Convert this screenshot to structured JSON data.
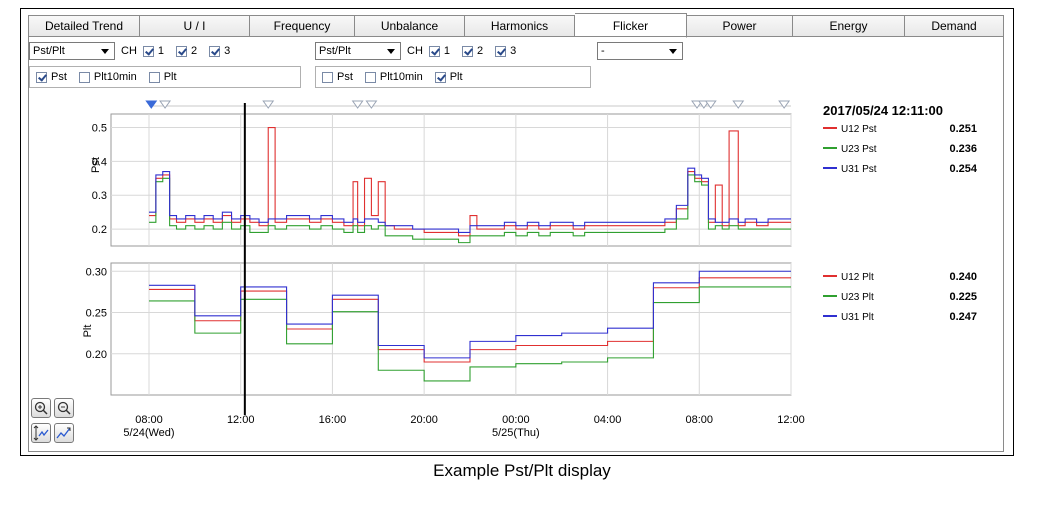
{
  "tabs": [
    {
      "label": "Detailed Trend",
      "width": 112
    },
    {
      "label": "U / I",
      "width": 110
    },
    {
      "label": "Frequency",
      "width": 105
    },
    {
      "label": "Unbalance",
      "width": 110
    },
    {
      "label": "Harmonics",
      "width": 110
    },
    {
      "label": "Flicker",
      "width": 112
    },
    {
      "label": "Power",
      "width": 106
    },
    {
      "label": "Energy",
      "width": 112
    },
    {
      "label": "Demand",
      "width": 99
    }
  ],
  "active_tab": "Flicker",
  "controls": {
    "left": {
      "select": "Pst/Plt",
      "ch_label": "CH",
      "channels": [
        "1",
        "2",
        "3"
      ]
    },
    "right": {
      "select": "Pst/Plt",
      "ch_label": "CH",
      "channels": [
        "1",
        "2",
        "3"
      ]
    },
    "third_select": "-"
  },
  "options": {
    "left": {
      "pst": "Pst",
      "plt10min": "Plt10min",
      "plt": "Plt"
    },
    "right": {
      "pst": "Pst",
      "plt10min": "Plt10min",
      "plt": "Plt"
    }
  },
  "readout": {
    "timestamp": "2017/05/24 12:11:00",
    "pst": [
      {
        "name": "U12 Pst",
        "value": "0.251",
        "color": "#e03030"
      },
      {
        "name": "U23 Pst",
        "value": "0.236",
        "color": "#30a030"
      },
      {
        "name": "U31 Pst",
        "value": "0.254",
        "color": "#3030d0"
      }
    ],
    "plt": [
      {
        "name": "U12 Plt",
        "value": "0.240",
        "color": "#e03030"
      },
      {
        "name": "U23 Plt",
        "value": "0.225",
        "color": "#30a030"
      },
      {
        "name": "U31 Plt",
        "value": "0.247",
        "color": "#3030d0"
      }
    ]
  },
  "x_ticks": [
    {
      "label": "08:00",
      "sub": "5/24(Wed)",
      "hour": 0
    },
    {
      "label": "12:00",
      "sub": "",
      "hour": 4
    },
    {
      "label": "16:00",
      "sub": "",
      "hour": 8
    },
    {
      "label": "20:00",
      "sub": "",
      "hour": 12
    },
    {
      "label": "00:00",
      "sub": "5/25(Thu)",
      "hour": 16
    },
    {
      "label": "04:00",
      "sub": "",
      "hour": 20
    },
    {
      "label": "08:00",
      "sub": "",
      "hour": 24
    },
    {
      "label": "12:00",
      "sub": "",
      "hour": 28
    }
  ],
  "cursor_hour": 4.18,
  "event_marker_hours": [
    0.1,
    0.7,
    5.2,
    9.1,
    9.7,
    23.9,
    24.2,
    24.5,
    25.7,
    27.7
  ],
  "chart_data": [
    {
      "type": "line",
      "ylabel": "Pst",
      "ylim": [
        0.15,
        0.54
      ],
      "yticks": [
        0.2,
        0.3,
        0.4,
        0.5
      ],
      "xlim": [
        0,
        28
      ],
      "series": [
        {
          "name": "U12 Pst",
          "color": "#e03030",
          "x": [
            0,
            0.3,
            0.6,
            0.9,
            1.2,
            1.6,
            2,
            2.4,
            2.8,
            3.2,
            3.6,
            4,
            4.4,
            4.8,
            5.2,
            5.5,
            6,
            6.5,
            7,
            7.5,
            8,
            8.5,
            8.9,
            9.1,
            9.4,
            9.7,
            10,
            10.3,
            10.7,
            11,
            11.5,
            12,
            12.5,
            13,
            13.5,
            14,
            14.3,
            14.6,
            15,
            15.5,
            16,
            16.5,
            17,
            17.5,
            18,
            18.5,
            19,
            19.5,
            20,
            20.5,
            21,
            21.5,
            22,
            22.5,
            23,
            23.5,
            23.8,
            24.1,
            24.4,
            24.7,
            25,
            25.3,
            25.7,
            26,
            26.5,
            27,
            27.5,
            28
          ],
          "y": [
            0.24,
            0.35,
            0.36,
            0.23,
            0.22,
            0.23,
            0.22,
            0.23,
            0.22,
            0.24,
            0.22,
            0.23,
            0.22,
            0.21,
            0.5,
            0.22,
            0.23,
            0.23,
            0.22,
            0.23,
            0.22,
            0.21,
            0.34,
            0.21,
            0.35,
            0.24,
            0.34,
            0.21,
            0.2,
            0.2,
            0.2,
            0.19,
            0.19,
            0.19,
            0.18,
            0.24,
            0.2,
            0.2,
            0.2,
            0.21,
            0.2,
            0.21,
            0.2,
            0.21,
            0.21,
            0.2,
            0.21,
            0.21,
            0.21,
            0.21,
            0.21,
            0.21,
            0.21,
            0.22,
            0.26,
            0.37,
            0.35,
            0.34,
            0.22,
            0.33,
            0.21,
            0.49,
            0.21,
            0.22,
            0.21,
            0.22,
            0.22,
            0.22
          ]
        },
        {
          "name": "U23 Pst",
          "color": "#30a030",
          "x": [
            0,
            0.3,
            0.6,
            0.9,
            1.2,
            1.6,
            2,
            2.4,
            2.8,
            3.2,
            3.6,
            4,
            4.4,
            4.8,
            5.2,
            5.5,
            6,
            6.5,
            7,
            7.5,
            8,
            8.5,
            8.9,
            9.1,
            9.4,
            9.7,
            10,
            10.3,
            10.7,
            11,
            11.5,
            12,
            12.5,
            13,
            13.5,
            14,
            14.3,
            14.6,
            15,
            15.5,
            16,
            16.5,
            17,
            17.5,
            18,
            18.5,
            19,
            19.5,
            20,
            20.5,
            21,
            21.5,
            22,
            22.5,
            23,
            23.5,
            23.8,
            24.1,
            24.4,
            24.7,
            25,
            25.3,
            25.7,
            26,
            26.5,
            27,
            27.5,
            28
          ],
          "y": [
            0.22,
            0.34,
            0.35,
            0.21,
            0.2,
            0.21,
            0.2,
            0.21,
            0.2,
            0.22,
            0.2,
            0.21,
            0.19,
            0.19,
            0.21,
            0.2,
            0.21,
            0.21,
            0.2,
            0.21,
            0.2,
            0.19,
            0.21,
            0.19,
            0.21,
            0.2,
            0.21,
            0.18,
            0.18,
            0.18,
            0.17,
            0.17,
            0.17,
            0.17,
            0.16,
            0.18,
            0.18,
            0.18,
            0.18,
            0.19,
            0.18,
            0.19,
            0.18,
            0.19,
            0.19,
            0.18,
            0.19,
            0.19,
            0.19,
            0.19,
            0.19,
            0.19,
            0.19,
            0.2,
            0.23,
            0.36,
            0.34,
            0.33,
            0.2,
            0.21,
            0.2,
            0.21,
            0.2,
            0.2,
            0.2,
            0.2,
            0.2,
            0.2
          ]
        },
        {
          "name": "U31 Pst",
          "color": "#3030d0",
          "x": [
            0,
            0.3,
            0.6,
            0.9,
            1.2,
            1.6,
            2,
            2.4,
            2.8,
            3.2,
            3.6,
            4,
            4.4,
            4.8,
            5.2,
            5.5,
            6,
            6.5,
            7,
            7.5,
            8,
            8.5,
            8.9,
            9.1,
            9.4,
            9.7,
            10,
            10.3,
            10.7,
            11,
            11.5,
            12,
            12.5,
            13,
            13.5,
            14,
            14.3,
            14.6,
            15,
            15.5,
            16,
            16.5,
            17,
            17.5,
            18,
            18.5,
            19,
            19.5,
            20,
            20.5,
            21,
            21.5,
            22,
            22.5,
            23,
            23.5,
            23.8,
            24.1,
            24.4,
            24.7,
            25,
            25.3,
            25.7,
            26,
            26.5,
            27,
            27.5,
            28
          ],
          "y": [
            0.25,
            0.36,
            0.37,
            0.24,
            0.23,
            0.24,
            0.23,
            0.24,
            0.23,
            0.25,
            0.23,
            0.24,
            0.23,
            0.22,
            0.23,
            0.23,
            0.24,
            0.24,
            0.23,
            0.24,
            0.23,
            0.22,
            0.23,
            0.22,
            0.23,
            0.23,
            0.22,
            0.21,
            0.21,
            0.21,
            0.2,
            0.2,
            0.2,
            0.2,
            0.19,
            0.21,
            0.21,
            0.21,
            0.21,
            0.22,
            0.21,
            0.22,
            0.21,
            0.22,
            0.22,
            0.21,
            0.22,
            0.22,
            0.22,
            0.22,
            0.22,
            0.22,
            0.22,
            0.23,
            0.27,
            0.38,
            0.36,
            0.35,
            0.23,
            0.22,
            0.22,
            0.23,
            0.22,
            0.23,
            0.22,
            0.23,
            0.23,
            0.23
          ]
        }
      ]
    },
    {
      "type": "line",
      "ylabel": "Plt",
      "ylim": [
        0.15,
        0.31
      ],
      "yticks": [
        0.2,
        0.25,
        0.3
      ],
      "xlim": [
        0,
        28
      ],
      "series": [
        {
          "name": "U12 Plt",
          "color": "#e03030",
          "x": [
            0,
            2,
            4,
            6,
            8,
            10,
            12,
            14,
            16,
            18,
            20,
            22,
            24,
            26,
            28
          ],
          "y": [
            0.278,
            0.24,
            0.276,
            0.23,
            0.266,
            0.205,
            0.19,
            0.205,
            0.21,
            0.21,
            0.215,
            0.28,
            0.292,
            0.292,
            0.292
          ]
        },
        {
          "name": "U23 Plt",
          "color": "#30a030",
          "x": [
            0,
            2,
            4,
            6,
            8,
            10,
            12,
            14,
            16,
            18,
            20,
            22,
            24,
            26,
            28
          ],
          "y": [
            0.264,
            0.225,
            0.266,
            0.212,
            0.251,
            0.18,
            0.167,
            0.184,
            0.188,
            0.19,
            0.195,
            0.262,
            0.281,
            0.281,
            0.281
          ]
        },
        {
          "name": "U31 Plt",
          "color": "#3030d0",
          "x": [
            0,
            2,
            4,
            6,
            8,
            10,
            12,
            14,
            16,
            18,
            20,
            22,
            24,
            26,
            28
          ],
          "y": [
            0.283,
            0.246,
            0.281,
            0.236,
            0.271,
            0.21,
            0.195,
            0.215,
            0.222,
            0.225,
            0.231,
            0.286,
            0.3,
            0.3,
            0.3
          ]
        }
      ]
    }
  ],
  "caption": "Example Pst/Plt display"
}
